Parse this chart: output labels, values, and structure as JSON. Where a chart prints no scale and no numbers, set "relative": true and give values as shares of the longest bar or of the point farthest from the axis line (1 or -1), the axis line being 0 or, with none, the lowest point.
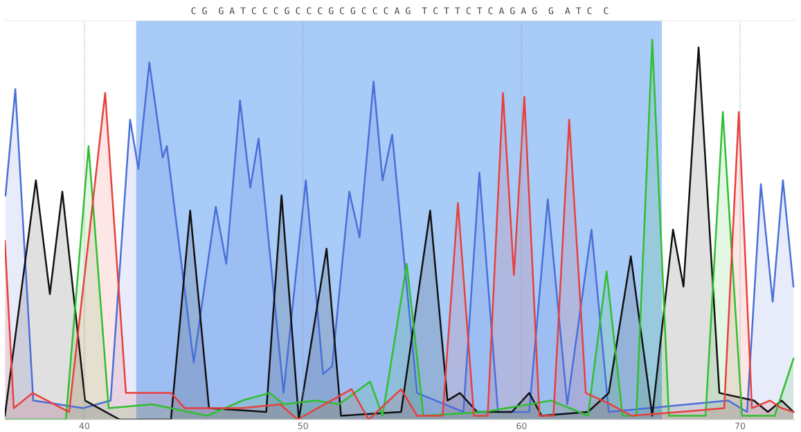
{
  "chart_data": {
    "type": "area",
    "relative": true,
    "xlim": [
      36.36,
      72.5
    ],
    "xticks": [
      40,
      50,
      60,
      70
    ],
    "grid": "x",
    "annotations": [
      "C G  G A T C C C G C C C G C G C C C A G  T C T T C T C A G A G  G  A T C  C"
    ],
    "bands": [
      {
        "axis": "x",
        "from": 42.37,
        "to": 66.42,
        "color": "#a9cbf7"
      }
    ],
    "series": [
      {
        "color": "#4a6fd8",
        "x": [
          36.39,
          36.84,
          37.66,
          39.94,
          41.2,
          42.09,
          42.47,
          42.97,
          43.58,
          43.77,
          45.0,
          46.01,
          46.49,
          47.12,
          47.59,
          47.97,
          49.11,
          50.13,
          50.92,
          51.33,
          52.12,
          52.59,
          53.23,
          53.64,
          54.08,
          55.22,
          57.34,
          58.07,
          58.92,
          60.35,
          61.2,
          62.09,
          63.2,
          63.99,
          69.46,
          70.32,
          70.95,
          71.49,
          71.96,
          72.44
        ],
        "values": [
          0.59,
          0.87,
          0.05,
          0.03,
          0.05,
          0.79,
          0.66,
          0.94,
          0.69,
          0.72,
          0.15,
          0.56,
          0.41,
          0.84,
          0.61,
          0.74,
          0.07,
          0.63,
          0.12,
          0.14,
          0.6,
          0.48,
          0.89,
          0.63,
          0.75,
          0.07,
          0.02,
          0.65,
          0.02,
          0.02,
          0.58,
          0.04,
          0.5,
          0.02,
          0.05,
          0.02,
          0.62,
          0.31,
          0.63,
          0.35
        ]
      },
      {
        "color": "#111111",
        "x": [
          36.36,
          37.78,
          38.42,
          38.99,
          40.03,
          41.61,
          43.96,
          44.84,
          45.7,
          48.32,
          49.02,
          49.81,
          51.08,
          51.74,
          54.49,
          55.82,
          56.61,
          57.18,
          57.97,
          59.56,
          60.35,
          60.92,
          63.04,
          63.99,
          65.0,
          65.98,
          66.93,
          67.41,
          68.1,
          69.05,
          70.63,
          71.27,
          71.9,
          72.44
        ],
        "values": [
          0.01,
          0.63,
          0.33,
          0.6,
          0.05,
          0.0,
          0.0,
          0.55,
          0.03,
          0.02,
          0.59,
          0.0,
          0.45,
          0.01,
          0.02,
          0.55,
          0.05,
          0.07,
          0.02,
          0.02,
          0.07,
          0.01,
          0.02,
          0.07,
          0.43,
          0.01,
          0.5,
          0.35,
          0.98,
          0.07,
          0.05,
          0.02,
          0.05,
          0.02
        ]
      },
      {
        "color": "#2fbf2f",
        "x": [
          36.36,
          39.15,
          40.19,
          41.11,
          43.1,
          45.63,
          47.22,
          48.48,
          49.11,
          50.6,
          51.65,
          53.07,
          53.64,
          54.75,
          55.51,
          58.29,
          61.36,
          63.04,
          63.89,
          64.62,
          65.25,
          65.98,
          66.74,
          68.42,
          69.21,
          70.09,
          71.58,
          72.44
        ],
        "values": [
          0.0,
          0.0,
          0.72,
          0.03,
          0.04,
          0.01,
          0.05,
          0.07,
          0.04,
          0.05,
          0.04,
          0.1,
          0.01,
          0.41,
          0.01,
          0.02,
          0.05,
          0.01,
          0.39,
          0.01,
          0.01,
          1.0,
          0.01,
          0.01,
          0.81,
          0.01,
          0.01,
          0.16
        ]
      },
      {
        "color": "#e8403c",
        "x": [
          36.36,
          36.77,
          37.63,
          39.3,
          40.95,
          41.9,
          43.01,
          43.96,
          44.59,
          47.22,
          48.96,
          49.75,
          52.22,
          53.01,
          54.49,
          55.22,
          56.39,
          57.09,
          57.82,
          58.45,
          59.15,
          59.65,
          60.13,
          60.82,
          61.46,
          62.18,
          62.94,
          64.08,
          65.03,
          67.25,
          69.27,
          69.94,
          70.54,
          71.36,
          71.9,
          72.44
        ],
        "values": [
          0.47,
          0.03,
          0.07,
          0.02,
          0.86,
          0.07,
          0.07,
          0.07,
          0.03,
          0.03,
          0.04,
          0.0,
          0.08,
          0.0,
          0.08,
          0.01,
          0.01,
          0.57,
          0.01,
          0.01,
          0.86,
          0.38,
          0.85,
          0.01,
          0.01,
          0.79,
          0.07,
          0.04,
          0.01,
          0.02,
          0.03,
          0.81,
          0.03,
          0.05,
          0.03,
          0.02
        ]
      }
    ]
  }
}
